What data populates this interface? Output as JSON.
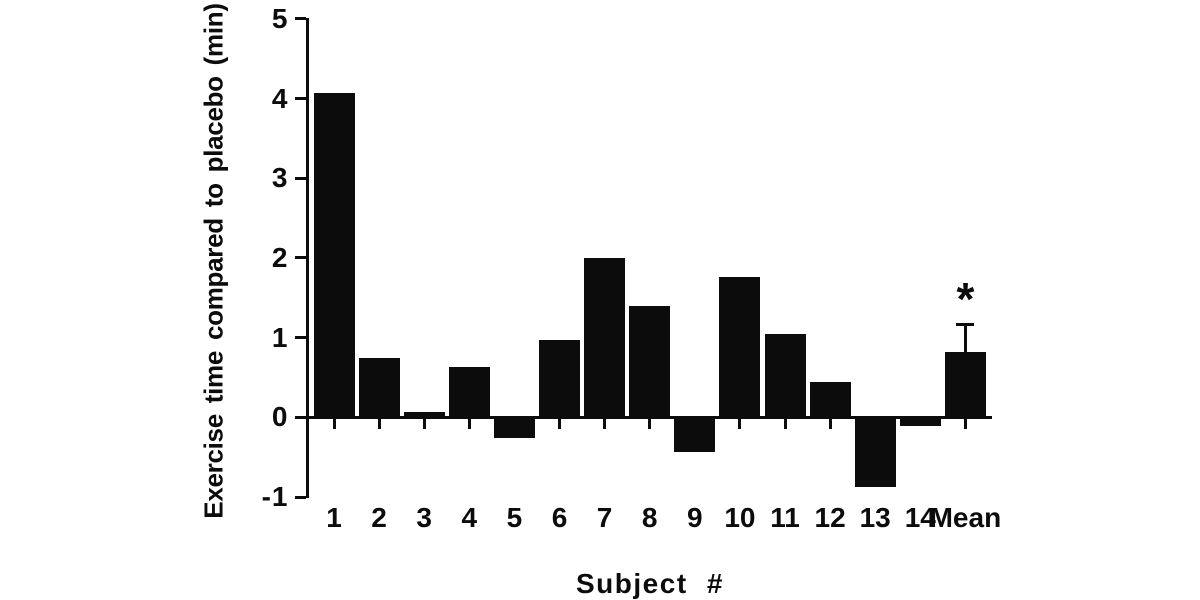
{
  "figure": {
    "background": "#ffffff",
    "ink_color": "#0c0c0c"
  },
  "chart_data": {
    "type": "bar",
    "xlabel": "Subject #",
    "ylabel": "Exercise time compared to placebo (min)",
    "categories": [
      "1",
      "2",
      "3",
      "4",
      "5",
      "6",
      "7",
      "8",
      "9",
      "10",
      "11",
      "12",
      "13",
      "14",
      "Mean"
    ],
    "values": [
      4.07,
      0.75,
      0.07,
      0.63,
      -0.26,
      0.97,
      2.0,
      1.4,
      -0.43,
      1.76,
      1.04,
      0.44,
      -0.87,
      -0.11,
      0.82
    ],
    "ylim": [
      -1,
      5
    ],
    "yticks": [
      5,
      4,
      3,
      2,
      1,
      0,
      -1
    ],
    "grid": false,
    "legend": null,
    "bar_color": "#0c0c0c",
    "mean_bar": {
      "category": "Mean",
      "value": 0.82,
      "error_upper": 0.35,
      "significance_marker": "*"
    }
  }
}
